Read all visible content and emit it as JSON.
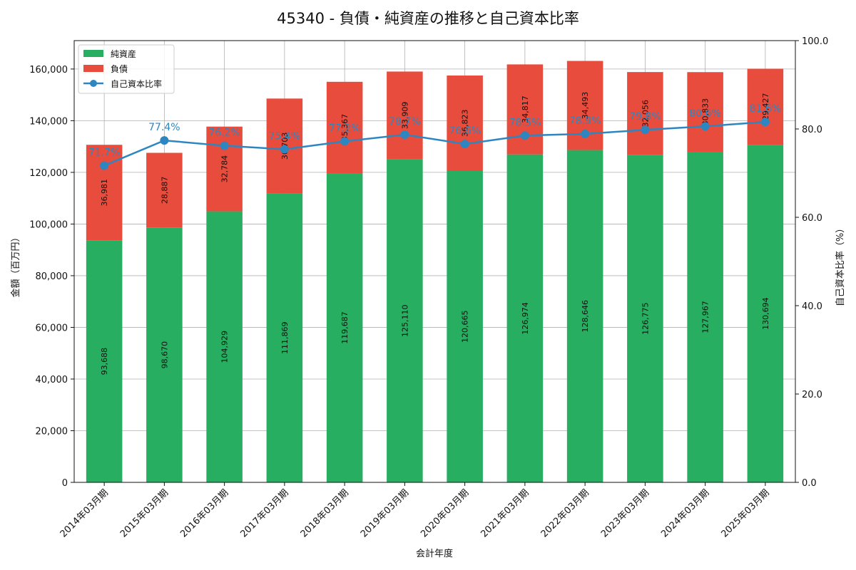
{
  "colors": {
    "equity": "#27ae60",
    "liabilities": "#e74c3c",
    "ratio": "#2e86c1",
    "grid": "#b0b0b0"
  },
  "chart_data": {
    "type": "bar",
    "stacked": true,
    "title": "45340 - 負債・純資産の推移と自己資本比率",
    "xlabel": "会計年度",
    "ylabel": "金額（百万円）",
    "y2label": "自己資本比率（%）",
    "ylim": [
      0,
      171000
    ],
    "y2lim": [
      0,
      100
    ],
    "yticks": [
      0,
      20000,
      40000,
      60000,
      80000,
      100000,
      120000,
      140000,
      160000
    ],
    "ytick_labels": [
      "0",
      "20,000",
      "40,000",
      "60,000",
      "80,000",
      "100,000",
      "120,000",
      "140,000",
      "160,000"
    ],
    "y2ticks": [
      0,
      20,
      40,
      60,
      80,
      100
    ],
    "y2tick_labels": [
      "0.0",
      "20.0",
      "40.0",
      "60.0",
      "80.0",
      "100.0"
    ],
    "grid": true,
    "legend_position": "top-left",
    "categories": [
      "2014年03月期",
      "2015年03月期",
      "2016年03月期",
      "2017年03月期",
      "2018年03月期",
      "2019年03月期",
      "2020年03月期",
      "2021年03月期",
      "2022年03月期",
      "2023年03月期",
      "2024年03月期",
      "2025年03月期"
    ],
    "series": [
      {
        "name": "純資産",
        "type": "bar",
        "values": [
          93688,
          98670,
          104929,
          111869,
          119687,
          125110,
          120665,
          126974,
          128646,
          126775,
          127967,
          130694
        ],
        "labels": [
          "93,688",
          "98,670",
          "104,929",
          "111,869",
          "119,687",
          "125,110",
          "120,665",
          "126,974",
          "128,646",
          "126,775",
          "127,967",
          "130,694"
        ]
      },
      {
        "name": "負債",
        "type": "bar",
        "values": [
          36981,
          28887,
          32784,
          36703,
          35367,
          33909,
          36823,
          34817,
          34493,
          32056,
          30833,
          29427
        ],
        "labels": [
          "36,981",
          "28,887",
          "32,784",
          "36,703",
          "35,367",
          "33,909",
          "36,823",
          "34,817",
          "34,493",
          "32,056",
          "30,833",
          "29,427"
        ]
      },
      {
        "name": "自己資本比率",
        "type": "line",
        "axis": "right",
        "values": [
          71.7,
          77.4,
          76.2,
          75.4,
          77.2,
          78.7,
          76.6,
          78.5,
          78.9,
          79.8,
          80.6,
          81.6
        ],
        "labels": [
          "71.7%",
          "77.4%",
          "76.2%",
          "75.4%",
          "77.2%",
          "78.7%",
          "76.6%",
          "78.5%",
          "78.9%",
          "79.8%",
          "80.6%",
          "81.6%"
        ]
      }
    ]
  }
}
